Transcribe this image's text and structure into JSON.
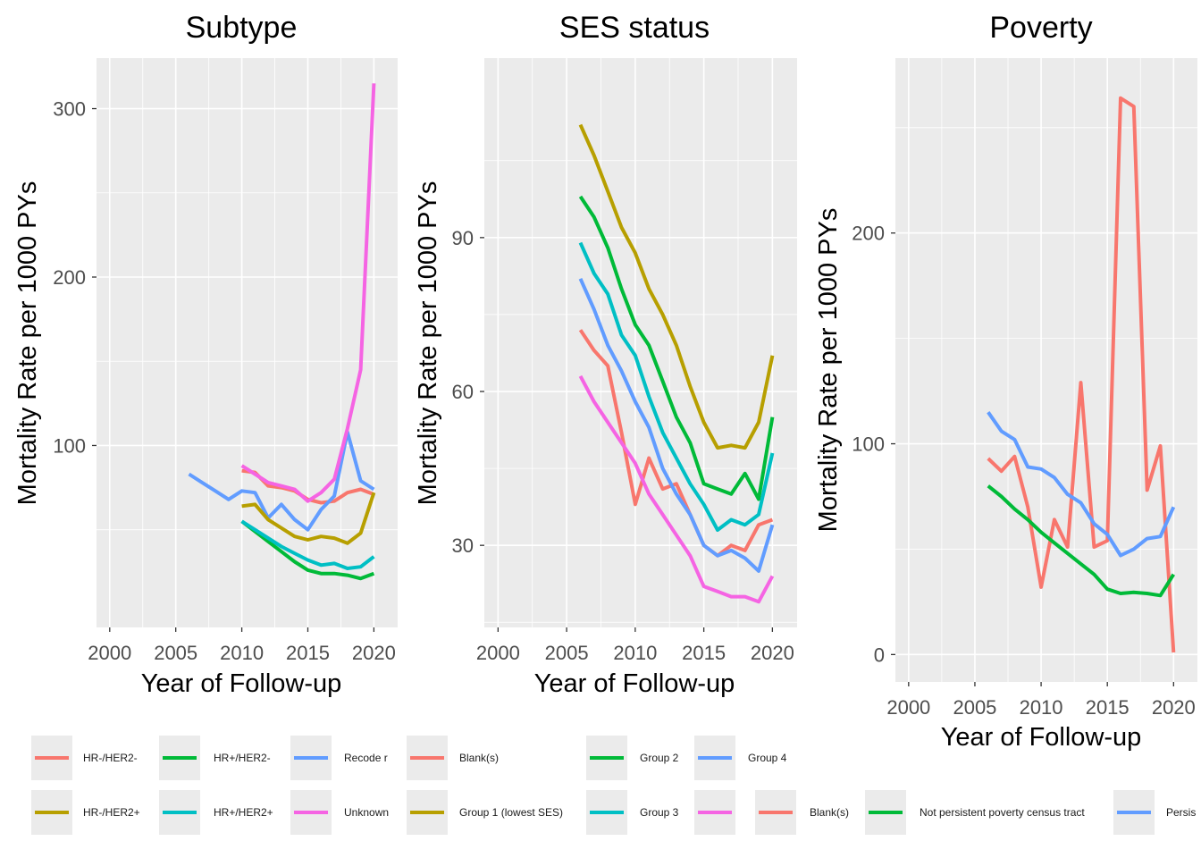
{
  "chart_data": [
    {
      "type": "line",
      "title": "Subtype",
      "xlabel": "Year of Follow-up",
      "ylabel": "Mortality Rate per 1000 PYs",
      "xlim": [
        1999,
        2021.8
      ],
      "ylim": [
        -8,
        330
      ],
      "xticks": [
        2000,
        2005,
        2010,
        2015,
        2020
      ],
      "yticks": [
        100,
        200,
        300
      ],
      "grid": true,
      "series": [
        {
          "name": "HR-/HER2-",
          "color": "#F8766D",
          "x": [
            2010,
            2011,
            2012,
            2013,
            2014,
            2015,
            2016,
            2017,
            2018,
            2019,
            2020
          ],
          "y": [
            85,
            84,
            76,
            75,
            73,
            68,
            66,
            67,
            72,
            74,
            71
          ]
        },
        {
          "name": "HR+/HER2-",
          "color": "#00BA38",
          "x": [
            2010,
            2011,
            2012,
            2013,
            2014,
            2015,
            2016,
            2017,
            2018,
            2019,
            2020
          ],
          "y": [
            55,
            49,
            43,
            37,
            31,
            26,
            24,
            24,
            23,
            21,
            24
          ]
        },
        {
          "name": "Recode r",
          "color": "#619CFF",
          "x": [
            2006,
            2007,
            2008,
            2009,
            2010,
            2011,
            2012,
            2013,
            2014,
            2015,
            2016,
            2017,
            2018,
            2019,
            2020
          ],
          "y": [
            83,
            78,
            73,
            68,
            73,
            72,
            57,
            65,
            56,
            50,
            62,
            70,
            108,
            79,
            74
          ]
        },
        {
          "name": "HR-/HER2+",
          "color": "#B79F00",
          "x": [
            2010,
            2011,
            2012,
            2013,
            2014,
            2015,
            2016,
            2017,
            2018,
            2019,
            2020
          ],
          "y": [
            64,
            65,
            56,
            51,
            46,
            44,
            46,
            45,
            42,
            48,
            72
          ]
        },
        {
          "name": "HR+/HER2+",
          "color": "#00BFC4",
          "x": [
            2010,
            2011,
            2012,
            2013,
            2014,
            2015,
            2016,
            2017,
            2018,
            2019,
            2020
          ],
          "y": [
            55,
            50,
            45,
            40,
            36,
            32,
            29,
            30,
            27,
            28,
            34
          ]
        },
        {
          "name": "Unknown",
          "color": "#F564E3",
          "x": [
            2010,
            2011,
            2012,
            2013,
            2014,
            2015,
            2016,
            2017,
            2018,
            2019,
            2020
          ],
          "y": [
            88,
            83,
            78,
            76,
            74,
            67,
            72,
            80,
            110,
            145,
            315
          ]
        }
      ]
    },
    {
      "type": "line",
      "title": "SES status",
      "xlabel": "Year of Follow-up",
      "ylabel": "Mortality Rate per 1000 PYs",
      "xlim": [
        1999,
        2021.8
      ],
      "ylim": [
        14,
        125
      ],
      "xticks": [
        2000,
        2005,
        2010,
        2015,
        2020
      ],
      "yticks": [
        30,
        60,
        90
      ],
      "grid": true,
      "series": [
        {
          "name": "Blank(s)",
          "color": "#F8766D",
          "x": [
            2006,
            2007,
            2008,
            2009,
            2010,
            2011,
            2012,
            2013,
            2014,
            2015,
            2016,
            2017,
            2018,
            2019,
            2020
          ],
          "y": [
            72,
            68,
            65,
            52,
            38,
            47,
            41,
            42,
            36,
            30,
            28,
            30,
            29,
            34,
            35
          ]
        },
        {
          "name": "Group 1 (lowest SES)",
          "color": "#B79F00",
          "x": [
            2006,
            2007,
            2008,
            2009,
            2010,
            2011,
            2012,
            2013,
            2014,
            2015,
            2016,
            2017,
            2018,
            2019,
            2020
          ],
          "y": [
            112,
            106,
            99,
            92,
            87,
            80,
            75,
            69,
            61,
            54,
            49,
            49.5,
            49,
            54,
            67
          ]
        },
        {
          "name": "Group 2",
          "color": "#00BA38",
          "x": [
            2006,
            2007,
            2008,
            2009,
            2010,
            2011,
            2012,
            2013,
            2014,
            2015,
            2016,
            2017,
            2018,
            2019,
            2020
          ],
          "y": [
            98,
            94,
            88,
            80,
            73,
            69,
            62,
            55,
            50,
            42,
            41,
            40,
            44,
            39,
            55
          ]
        },
        {
          "name": "Group 3",
          "color": "#00BFC4",
          "x": [
            2006,
            2007,
            2008,
            2009,
            2010,
            2011,
            2012,
            2013,
            2014,
            2015,
            2016,
            2017,
            2018,
            2019,
            2020
          ],
          "y": [
            89,
            83,
            79,
            71,
            67,
            59,
            52,
            47,
            42,
            38,
            33,
            35,
            34,
            36,
            48
          ]
        },
        {
          "name": "Group 4",
          "color": "#619CFF",
          "x": [
            2006,
            2007,
            2008,
            2009,
            2010,
            2011,
            2012,
            2013,
            2014,
            2015,
            2016,
            2017,
            2018,
            2019,
            2020
          ],
          "y": [
            82,
            76,
            69,
            64,
            58,
            53,
            45,
            40,
            36,
            30,
            28,
            29,
            27.5,
            25,
            34
          ]
        },
        {
          "name": "",
          "color": "#F564E3",
          "x": [
            2006,
            2007,
            2008,
            2009,
            2010,
            2011,
            2012,
            2013,
            2014,
            2015,
            2016,
            2017,
            2018,
            2019,
            2020
          ],
          "y": [
            63,
            58,
            54,
            50,
            46,
            40,
            36,
            32,
            28,
            22,
            21,
            20,
            20,
            19,
            24
          ]
        }
      ]
    },
    {
      "type": "line",
      "title": "Poverty",
      "xlabel": "Year of Follow-up",
      "ylabel": "Mortality Rate per 1000 PYs",
      "xlim": [
        1999,
        2021.8
      ],
      "ylim": [
        -13,
        283
      ],
      "xticks": [
        2000,
        2005,
        2010,
        2015,
        2020
      ],
      "yticks": [
        0,
        100,
        200
      ],
      "grid": true,
      "series": [
        {
          "name": "Blank(s)",
          "color": "#F8766D",
          "x": [
            2006,
            2007,
            2008,
            2009,
            2010,
            2011,
            2012,
            2013,
            2014,
            2015,
            2016,
            2017,
            2018,
            2019,
            2020
          ],
          "y": [
            93,
            87,
            94,
            70,
            32,
            64,
            51,
            129,
            51,
            54,
            264,
            260,
            78,
            99,
            1
          ]
        },
        {
          "name": "Not persistent poverty census tract",
          "color": "#00BA38",
          "x": [
            2006,
            2007,
            2008,
            2009,
            2010,
            2011,
            2012,
            2013,
            2014,
            2015,
            2016,
            2017,
            2018,
            2019,
            2020
          ],
          "y": [
            80,
            75,
            69,
            64,
            58,
            53,
            48,
            43,
            38,
            31,
            29,
            29.5,
            29,
            28,
            38
          ]
        },
        {
          "name": "Persis",
          "color": "#619CFF",
          "x": [
            2006,
            2007,
            2008,
            2009,
            2010,
            2011,
            2012,
            2013,
            2014,
            2015,
            2016,
            2017,
            2018,
            2019,
            2020
          ],
          "y": [
            115,
            106,
            102,
            89,
            88,
            84,
            76,
            72,
            62,
            57,
            47,
            50,
            55,
            56,
            70
          ]
        }
      ]
    }
  ],
  "legend": {
    "row1": [
      {
        "label": "HR-/HER2-",
        "color": "#F8766D"
      },
      {
        "label": "HR+/HER2-",
        "color": "#00BA38"
      },
      {
        "label": "Recode r",
        "color": "#619CFF"
      },
      {
        "label": "Blank(s)",
        "color": "#F8766D"
      },
      {
        "label": "Group 2",
        "color": "#00BA38"
      },
      {
        "label": "Group 4",
        "color": "#619CFF"
      }
    ],
    "row2": [
      {
        "label": "HR-/HER2+",
        "color": "#B79F00"
      },
      {
        "label": "HR+/HER2+",
        "color": "#00BFC4"
      },
      {
        "label": "Unknown",
        "color": "#F564E3"
      },
      {
        "label": "Group 1 (lowest SES)",
        "color": "#B79F00"
      },
      {
        "label": "Group 3",
        "color": "#00BFC4"
      },
      {
        "label": "",
        "color": "#F564E3"
      },
      {
        "label": "Blank(s)",
        "color": "#F8766D"
      },
      {
        "label": "Not persistent poverty census tract",
        "color": "#00BA38"
      },
      {
        "label": "Persis",
        "color": "#619CFF"
      }
    ]
  }
}
